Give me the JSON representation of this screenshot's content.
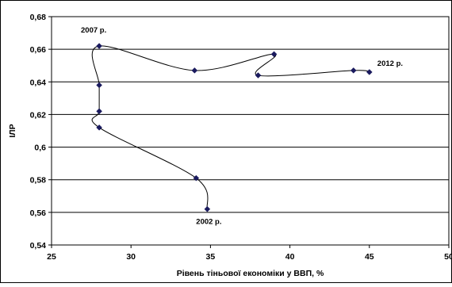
{
  "chart_data": {
    "type": "line",
    "smooth": true,
    "xlabel": "Рівень тіньової економіки у ВВП, %",
    "ylabel": "ІЛР",
    "xlim": [
      25,
      50
    ],
    "ylim": [
      0.54,
      0.68
    ],
    "x_ticks": [
      "25",
      "30",
      "35",
      "40",
      "45",
      "50"
    ],
    "y_ticks": [
      "0,54",
      "0,56",
      "0,58",
      "0,6",
      "0,62",
      "0,64",
      "0,66",
      "0,68"
    ],
    "grid": "horizontal",
    "legend": "none",
    "colors": {
      "line": "#000000",
      "marker": "#1a1a5e",
      "grid": "#000000"
    },
    "series": [
      {
        "points": [
          {
            "x": 34.8,
            "y": 0.562
          },
          {
            "x": 34.1,
            "y": 0.581
          },
          {
            "x": 28.0,
            "y": 0.612
          },
          {
            "x": 28.0,
            "y": 0.622
          },
          {
            "x": 28.0,
            "y": 0.638
          },
          {
            "x": 28.0,
            "y": 0.662
          },
          {
            "x": 34.0,
            "y": 0.647
          },
          {
            "x": 39.0,
            "y": 0.657
          },
          {
            "x": 38.0,
            "y": 0.644
          },
          {
            "x": 44.0,
            "y": 0.647
          },
          {
            "x": 45.0,
            "y": 0.646
          }
        ]
      }
    ],
    "annotations": [
      {
        "text": "2002 р.",
        "x": 34.8,
        "y": 0.562,
        "anchor": "below"
      },
      {
        "text": "2007 р.",
        "x": 28.0,
        "y": 0.662,
        "anchor": "above-left"
      },
      {
        "text": "2012 р.",
        "x": 45.0,
        "y": 0.646,
        "anchor": "above-right"
      }
    ]
  }
}
